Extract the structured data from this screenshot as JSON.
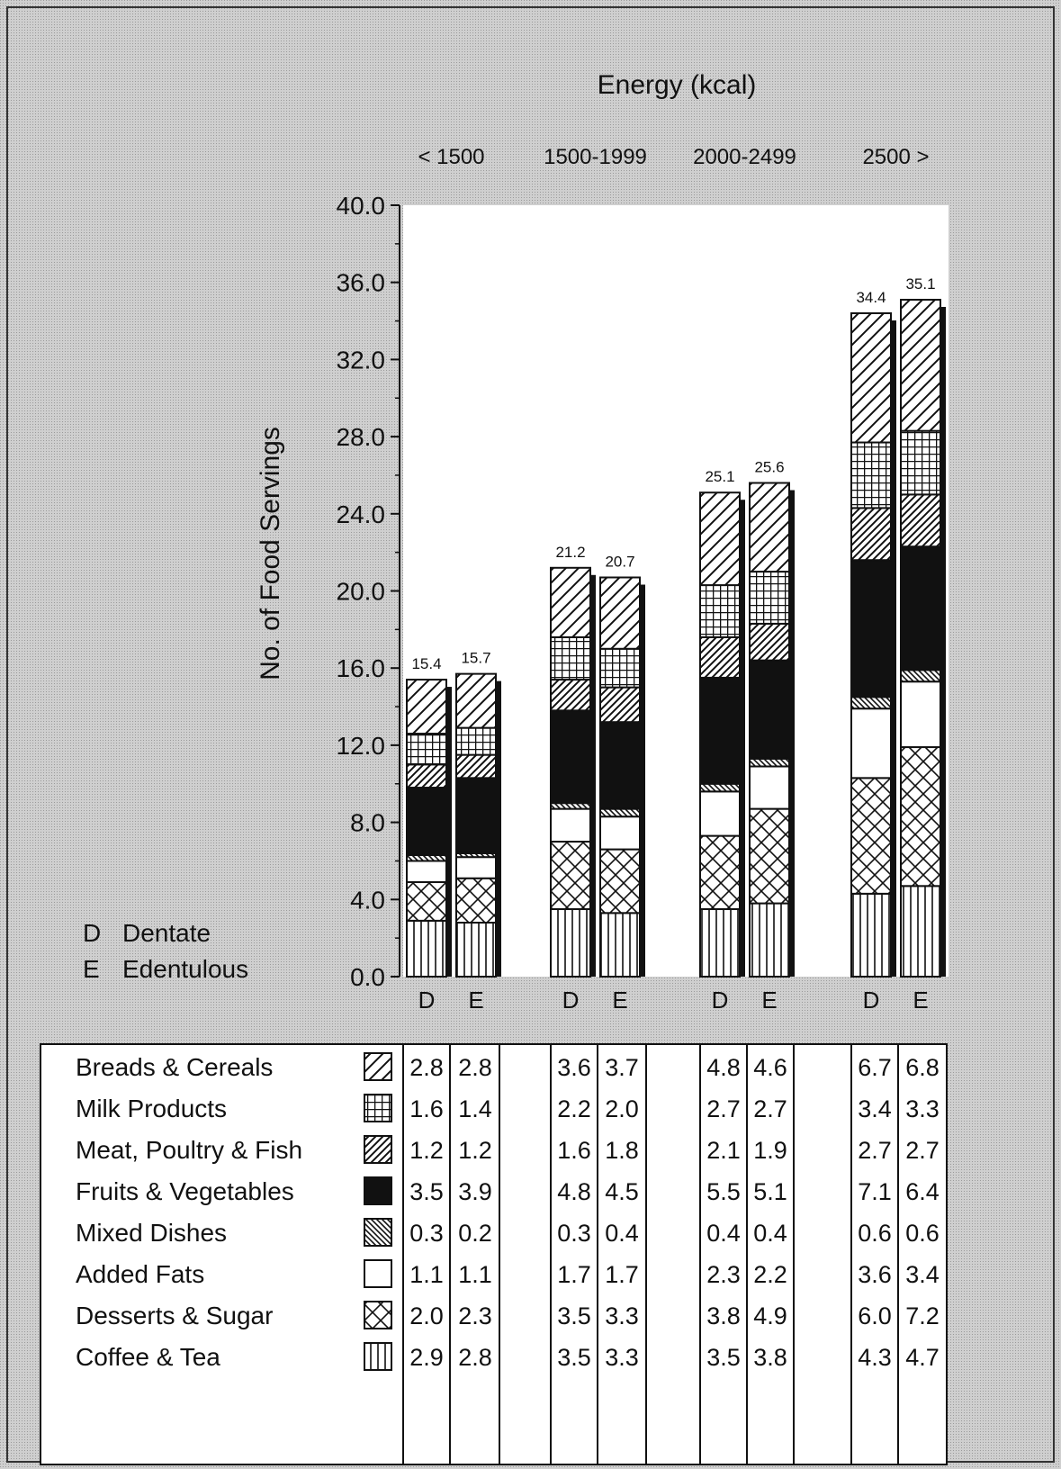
{
  "chart_data": {
    "type": "bar",
    "stacked": true,
    "title": "Energy (kcal)",
    "ylabel": "No. of Food Servings",
    "xlabel": "",
    "ylim": [
      0,
      40
    ],
    "yticks": [
      "0.0",
      "4.0",
      "8.0",
      "12.0",
      "16.0",
      "20.0",
      "24.0",
      "28.0",
      "32.0",
      "36.0",
      "40.0"
    ],
    "groups": [
      "< 1500",
      "1500-1999",
      "2000-2499",
      "2500 >"
    ],
    "bar_codes": [
      "D",
      "E"
    ],
    "legend_entries": [
      {
        "code": "D",
        "label": "Dentate"
      },
      {
        "code": "E",
        "label": "Edentulous"
      }
    ],
    "totals": [
      [
        15.4,
        15.7
      ],
      [
        21.2,
        20.7
      ],
      [
        25.1,
        25.6
      ],
      [
        34.4,
        35.1
      ]
    ],
    "series": [
      {
        "name": "Breads & Cereals",
        "pattern": "diag-wide",
        "values": [
          [
            2.8,
            2.8
          ],
          [
            3.6,
            3.7
          ],
          [
            4.8,
            4.6
          ],
          [
            6.7,
            6.8
          ]
        ]
      },
      {
        "name": "Milk Products",
        "pattern": "grid",
        "values": [
          [
            1.6,
            1.4
          ],
          [
            2.2,
            2.0
          ],
          [
            2.7,
            2.7
          ],
          [
            3.4,
            3.3
          ]
        ]
      },
      {
        "name": "Meat, Poultry & Fish",
        "pattern": "diag-dense",
        "values": [
          [
            1.2,
            1.2
          ],
          [
            1.6,
            1.8
          ],
          [
            2.1,
            1.9
          ],
          [
            2.7,
            2.7
          ]
        ]
      },
      {
        "name": "Fruits & Vegetables",
        "pattern": "solid",
        "values": [
          [
            3.5,
            3.9
          ],
          [
            4.8,
            4.5
          ],
          [
            5.5,
            5.1
          ],
          [
            7.1,
            6.4
          ]
        ]
      },
      {
        "name": "Mixed Dishes",
        "pattern": "back-diag",
        "values": [
          [
            0.3,
            0.2
          ],
          [
            0.3,
            0.4
          ],
          [
            0.4,
            0.4
          ],
          [
            0.6,
            0.6
          ]
        ]
      },
      {
        "name": "Added Fats",
        "pattern": "blank",
        "values": [
          [
            1.1,
            1.1
          ],
          [
            1.7,
            1.7
          ],
          [
            2.3,
            2.2
          ],
          [
            3.6,
            3.4
          ]
        ]
      },
      {
        "name": "Desserts & Sugar",
        "pattern": "cross",
        "values": [
          [
            2.0,
            2.3
          ],
          [
            3.5,
            3.3
          ],
          [
            3.8,
            4.9
          ],
          [
            6.0,
            7.2
          ]
        ]
      },
      {
        "name": "Coffee & Tea",
        "pattern": "vertical",
        "values": [
          [
            2.9,
            2.8
          ],
          [
            3.5,
            3.3
          ],
          [
            3.5,
            3.8
          ],
          [
            4.3,
            4.7
          ]
        ]
      }
    ],
    "colors": {
      "ink": "#111111",
      "panel": "#ffffff",
      "background": "#cfcfcf"
    }
  }
}
